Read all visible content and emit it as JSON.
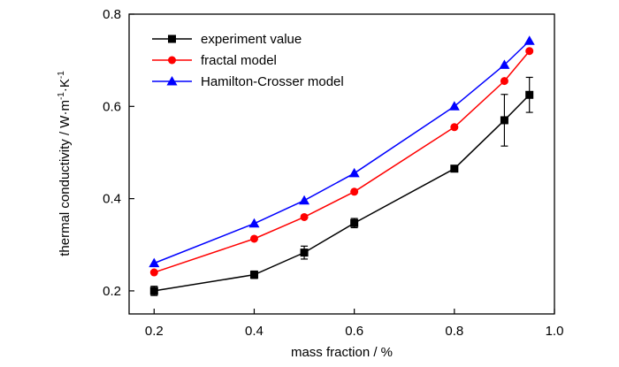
{
  "chart_data": {
    "type": "line",
    "xlabel": "mass fraction / %",
    "ylabel_parts": {
      "base": "thermal conductivity / W·m",
      "exp1": "-1",
      "mid": "·K",
      "exp2": "-1"
    },
    "xlim": [
      0.15,
      1.0
    ],
    "ylim": [
      0.15,
      0.8
    ],
    "xticks": [
      0.2,
      0.4,
      0.6,
      0.8,
      1.0
    ],
    "xtick_labels": [
      "0.2",
      "0.4",
      "0.6",
      "0.8",
      "1.0"
    ],
    "yticks": [
      0.2,
      0.4,
      0.6,
      0.8
    ],
    "ytick_labels": [
      "0.2",
      "0.4",
      "0.6",
      "0.8"
    ],
    "x": [
      0.2,
      0.4,
      0.5,
      0.6,
      0.8,
      0.9,
      0.95
    ],
    "legend_position": "top-left",
    "series": [
      {
        "name": "experiment value",
        "color": "#000000",
        "marker": "square",
        "values": [
          0.2,
          0.235,
          0.283,
          0.347,
          0.465,
          0.57,
          0.625
        ],
        "errors": [
          0.01,
          0.008,
          0.014,
          0.01,
          0.005,
          0.056,
          0.038
        ]
      },
      {
        "name": "fractal model",
        "color": "#ff0000",
        "marker": "circle",
        "values": [
          0.24,
          0.313,
          0.36,
          0.415,
          0.555,
          0.655,
          0.72
        ]
      },
      {
        "name": "Hamilton-Crosser model",
        "color": "#0000ff",
        "marker": "triangle",
        "values": [
          0.26,
          0.346,
          0.396,
          0.455,
          0.6,
          0.69,
          0.742
        ]
      }
    ]
  }
}
